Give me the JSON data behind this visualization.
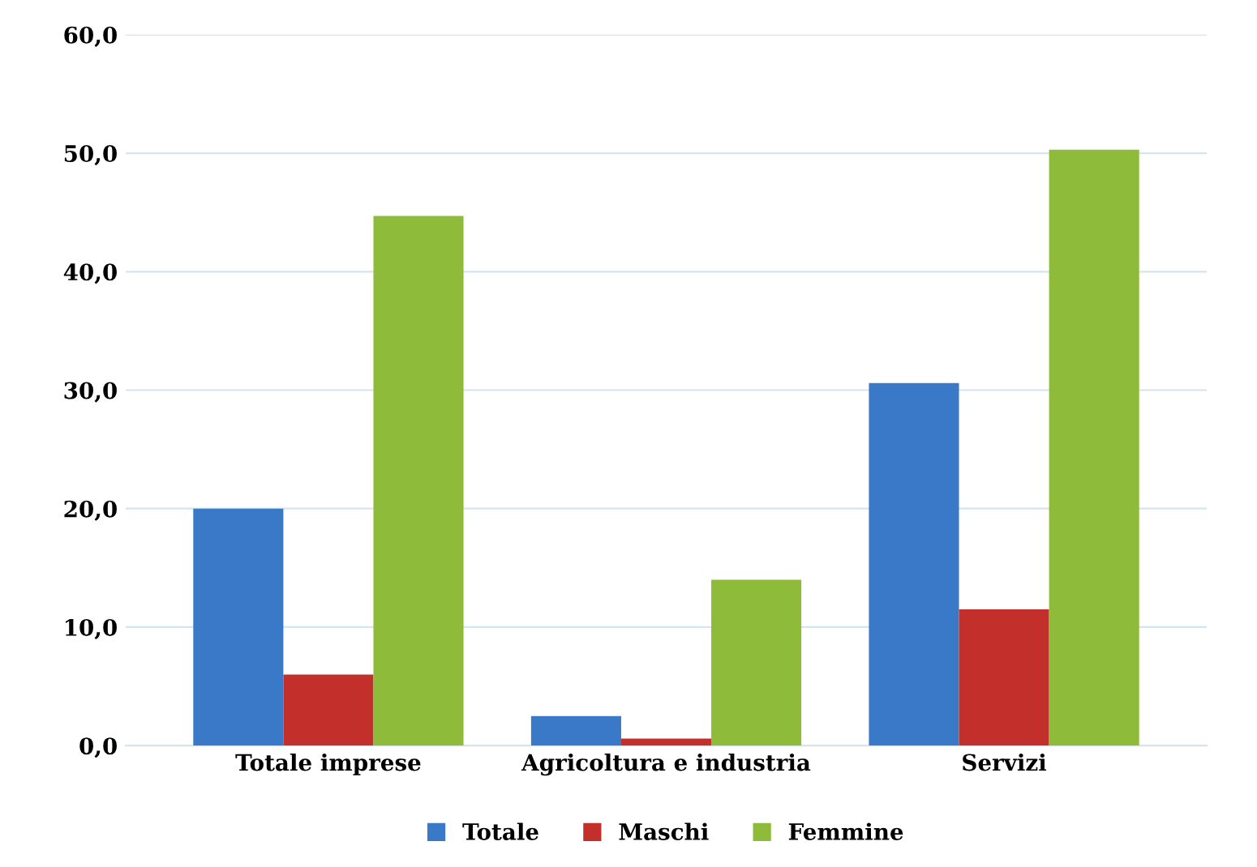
{
  "chart_data": {
    "type": "bar",
    "categories": [
      "Totale imprese",
      "Agricoltura e industria",
      "Servizi"
    ],
    "series": [
      {
        "name": "Totale",
        "color": "#3a78c8",
        "values": [
          20.0,
          2.5,
          30.6
        ]
      },
      {
        "name": "Maschi",
        "color": "#c3302b",
        "values": [
          6.0,
          0.6,
          11.5
        ]
      },
      {
        "name": "Femmine",
        "color": "#8fbb3a",
        "values": [
          44.7,
          14.0,
          50.3
        ]
      }
    ],
    "ylim": [
      0,
      60
    ],
    "yticks": [
      {
        "value": 0,
        "label": "0,0"
      },
      {
        "value": 10,
        "label": "10,0"
      },
      {
        "value": 20,
        "label": "20,0"
      },
      {
        "value": 30,
        "label": "30,0"
      },
      {
        "value": 40,
        "label": "40,0"
      },
      {
        "value": 50,
        "label": "50,0"
      },
      {
        "value": 60,
        "label": "60,0"
      }
    ],
    "grid": "y",
    "legend": "bottom"
  }
}
